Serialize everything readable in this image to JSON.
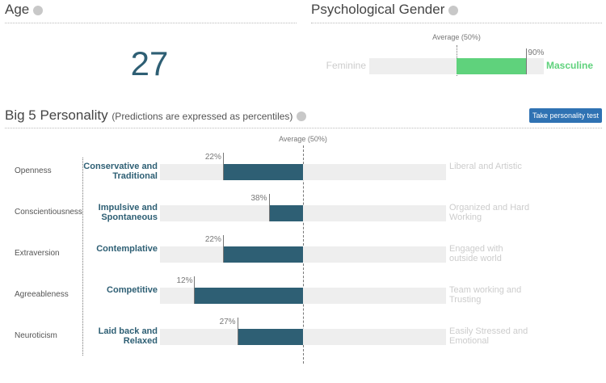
{
  "age": {
    "title": "Age",
    "value": 27
  },
  "gender": {
    "title": "Psychological Gender",
    "average_label": "Average (50%)",
    "left": "Feminine",
    "right": "Masculine",
    "value": 90,
    "value_label": "90%",
    "color": "#5fd27c"
  },
  "big5": {
    "title": "Big 5 Personality",
    "subtitle": "(Predictions are expressed as percentiles)",
    "button": "Take personality test",
    "average_label": "Average (50%)",
    "color": "#2e5f74",
    "traits": [
      {
        "name": "Openness",
        "low": "Conservative and Traditional",
        "high": "Liberal and Artistic",
        "value": 22,
        "value_label": "22%"
      },
      {
        "name": "Conscientiousness",
        "low": "Impulsive and Spontaneous",
        "high": "Organized and Hard Working",
        "value": 38,
        "value_label": "38%"
      },
      {
        "name": "Extraversion",
        "low": "Contemplative",
        "high": "Engaged with outside world",
        "value": 22,
        "value_label": "22%"
      },
      {
        "name": "Agreeableness",
        "low": "Competitive",
        "high": "Team working and Trusting",
        "value": 12,
        "value_label": "12%"
      },
      {
        "name": "Neuroticism",
        "low": "Laid back and Relaxed",
        "high": "Easily Stressed and Emotional",
        "value": 27,
        "value_label": "27%"
      }
    ]
  }
}
